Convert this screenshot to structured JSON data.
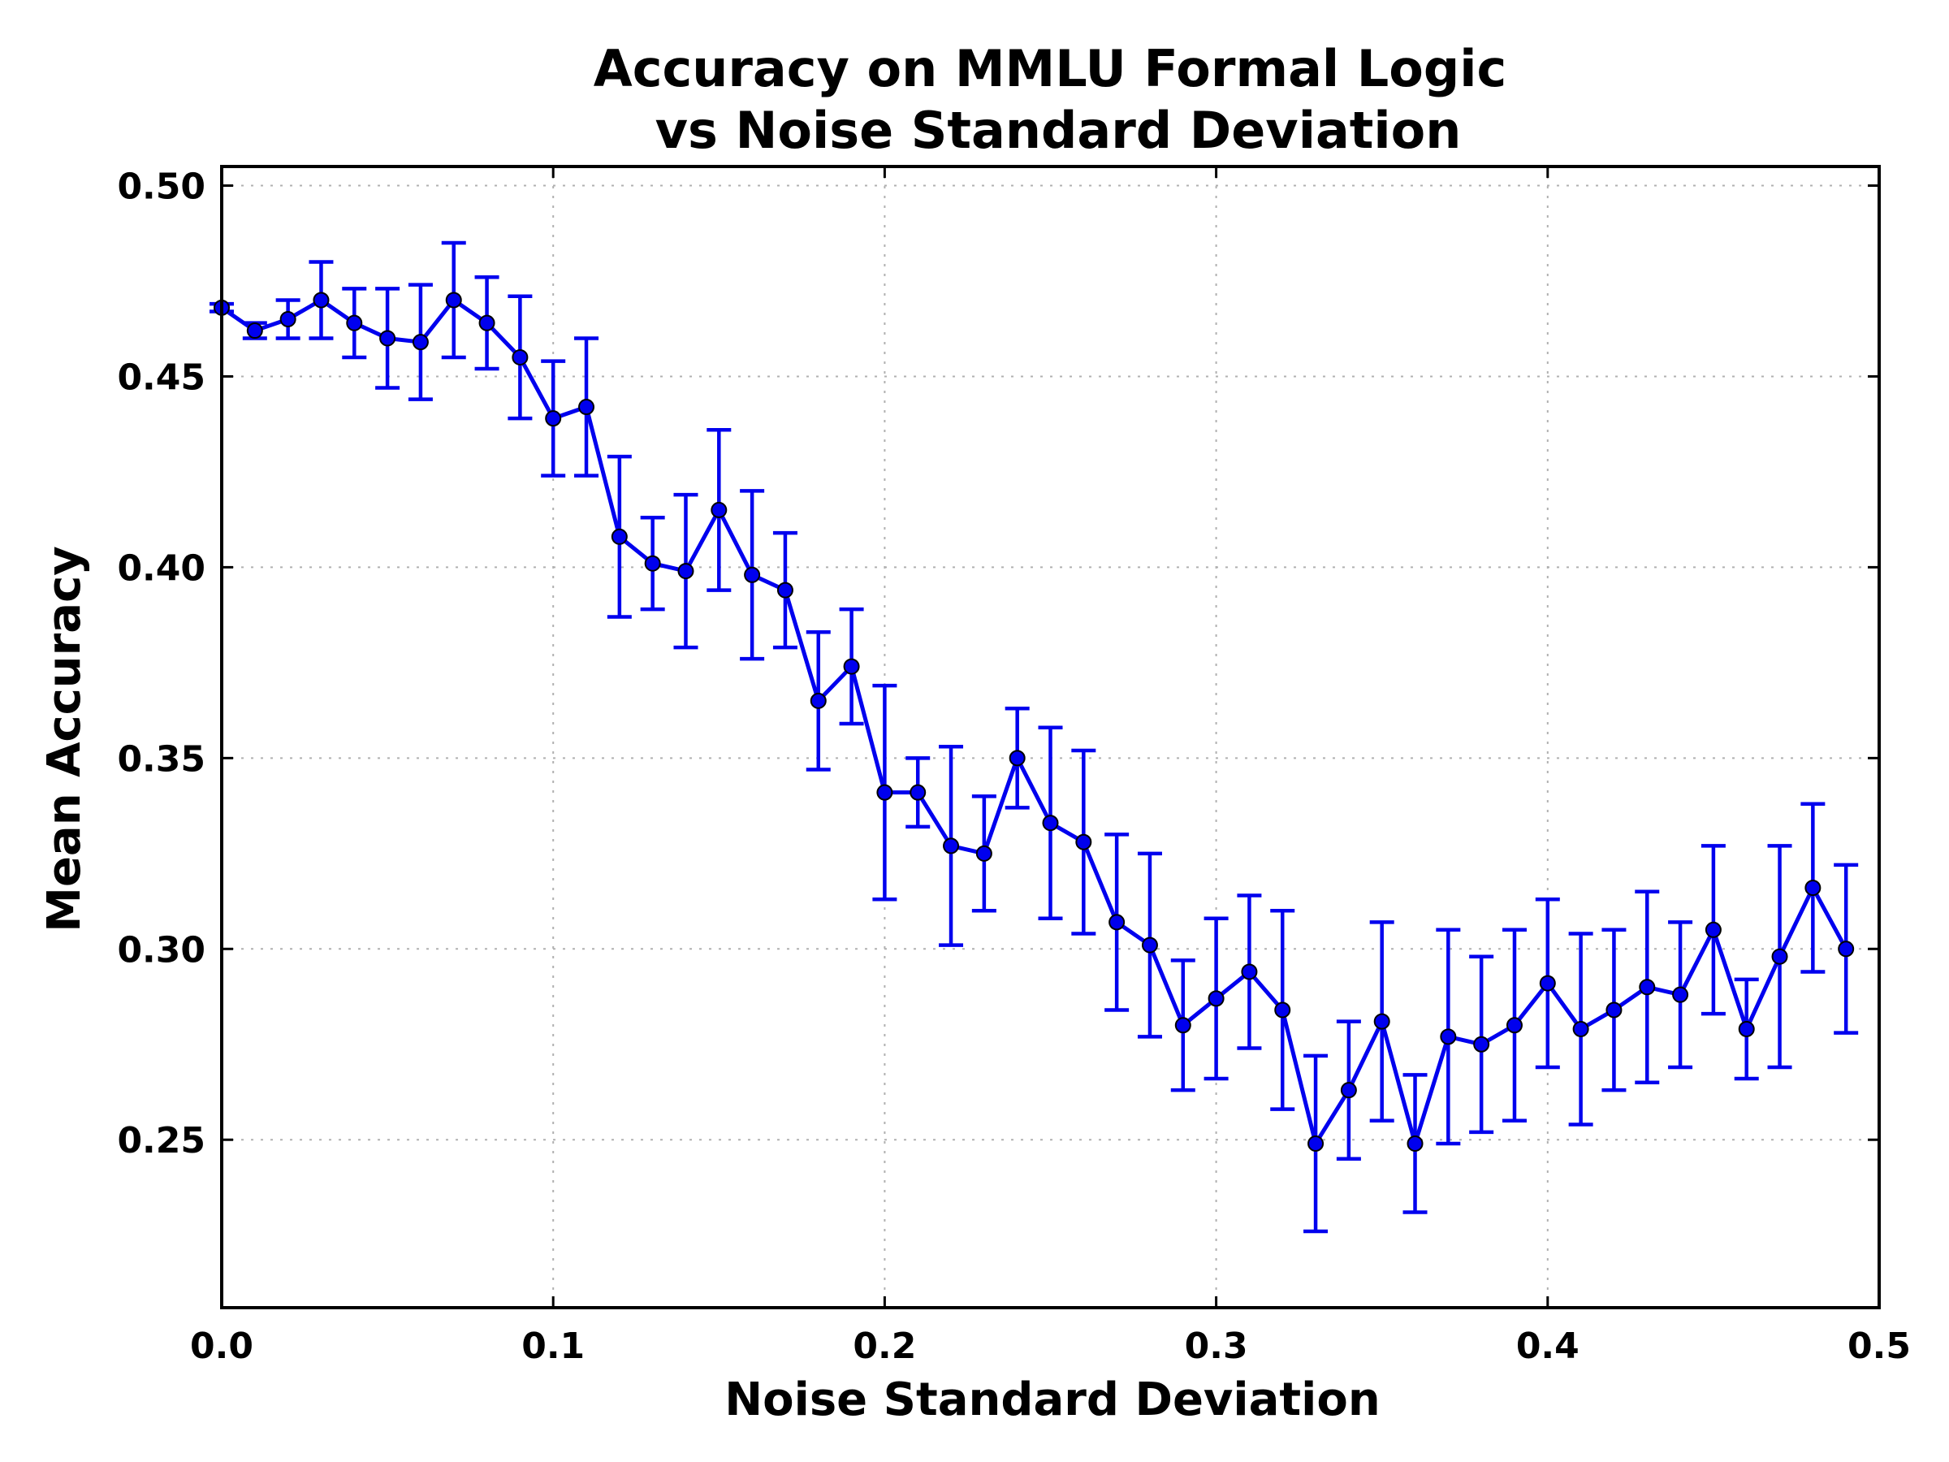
{
  "chart_data": {
    "type": "line",
    "title": [
      "Accuracy on MMLU Formal Logic",
      "vs Noise Standard Deviation"
    ],
    "xlabel": "Noise Standard Deviation",
    "ylabel": "Mean Accuracy",
    "xlim": [
      0.0,
      0.5
    ],
    "ylim": [
      0.206,
      0.505
    ],
    "xticks": [
      0.0,
      0.1,
      0.2,
      0.3,
      0.4,
      0.5
    ],
    "xtick_labels": [
      "0.0",
      "0.1",
      "0.2",
      "0.3",
      "0.4",
      "0.5"
    ],
    "yticks": [
      0.25,
      0.3,
      0.35,
      0.4,
      0.45,
      0.5
    ],
    "ytick_labels": [
      "0.25",
      "0.30",
      "0.35",
      "0.40",
      "0.45",
      "0.50"
    ],
    "grid": true,
    "line_color": "#0000ee",
    "marker_color": "#0000ee",
    "series": [
      {
        "x": [
          0.0,
          0.01,
          0.02,
          0.03,
          0.04,
          0.05,
          0.06,
          0.07,
          0.08,
          0.09,
          0.1,
          0.11,
          0.12,
          0.13,
          0.14,
          0.15,
          0.16,
          0.17,
          0.18,
          0.19,
          0.2,
          0.21,
          0.22,
          0.23,
          0.24,
          0.25,
          0.26,
          0.27,
          0.28,
          0.29,
          0.3,
          0.31,
          0.32,
          0.33,
          0.34,
          0.35,
          0.36,
          0.37,
          0.38,
          0.39,
          0.4,
          0.41,
          0.42,
          0.43,
          0.44,
          0.45,
          0.46,
          0.47,
          0.48,
          0.49
        ],
        "y": [
          0.468,
          0.462,
          0.465,
          0.47,
          0.464,
          0.46,
          0.459,
          0.47,
          0.464,
          0.455,
          0.439,
          0.442,
          0.408,
          0.401,
          0.399,
          0.415,
          0.398,
          0.394,
          0.365,
          0.374,
          0.341,
          0.341,
          0.327,
          0.325,
          0.35,
          0.333,
          0.328,
          0.307,
          0.301,
          0.28,
          0.287,
          0.294,
          0.284,
          0.249,
          0.263,
          0.281,
          0.249,
          0.277,
          0.275,
          0.28,
          0.291,
          0.279,
          0.284,
          0.29,
          0.288,
          0.305,
          0.279,
          0.298,
          0.316,
          0.3
        ],
        "err": [
          0.001,
          0.002,
          0.005,
          0.01,
          0.009,
          0.013,
          0.015,
          0.015,
          0.012,
          0.016,
          0.015,
          0.018,
          0.021,
          0.012,
          0.02,
          0.021,
          0.022,
          0.015,
          0.018,
          0.015,
          0.028,
          0.009,
          0.026,
          0.015,
          0.013,
          0.025,
          0.024,
          0.023,
          0.024,
          0.017,
          0.021,
          0.02,
          0.026,
          0.023,
          0.018,
          0.026,
          0.018,
          0.028,
          0.023,
          0.025,
          0.022,
          0.025,
          0.021,
          0.025,
          0.019,
          0.022,
          0.013,
          0.029,
          0.022,
          0.022
        ]
      }
    ]
  }
}
